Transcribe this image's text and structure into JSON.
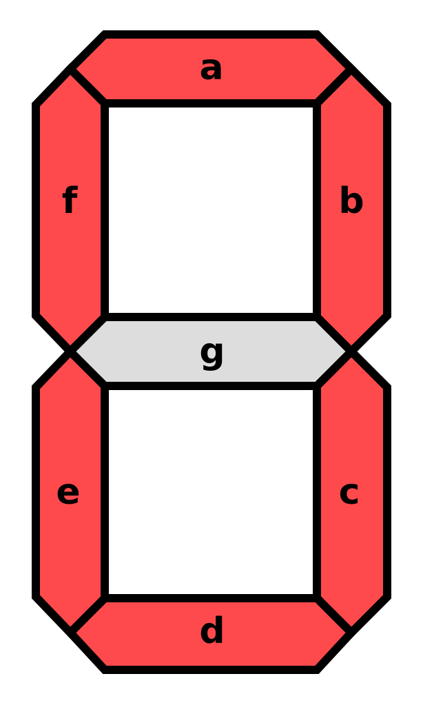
{
  "colors": {
    "on": "#ff4a4d",
    "off": "#dddddd",
    "outline": "#000000",
    "background": "#ffffff"
  },
  "segments": {
    "a": {
      "label": "a",
      "lit": true
    },
    "b": {
      "label": "b",
      "lit": true
    },
    "c": {
      "label": "c",
      "lit": true
    },
    "d": {
      "label": "d",
      "lit": true
    },
    "e": {
      "label": "e",
      "lit": true
    },
    "f": {
      "label": "f",
      "lit": true
    },
    "g": {
      "label": "g",
      "lit": false
    }
  }
}
